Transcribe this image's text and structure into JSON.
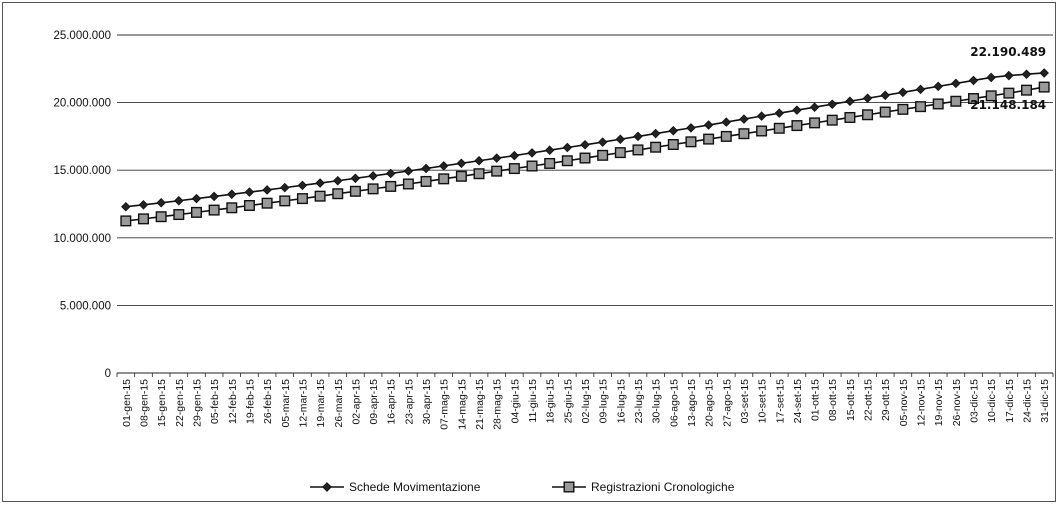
{
  "chart_data": {
    "type": "line",
    "ylim": [
      0,
      25000000
    ],
    "yticks": [
      "0",
      "5.000.000",
      "10.000.000",
      "15.000.000",
      "20.000.000",
      "25.000.000"
    ],
    "ytick_values": [
      0,
      5000000,
      10000000,
      15000000,
      20000000,
      25000000
    ],
    "grid": true,
    "legend_position": "bottom",
    "x": [
      "01-gen-15",
      "08-gen-15",
      "15-gen-15",
      "22-gen-15",
      "29-gen-15",
      "05-feb-15",
      "12-feb-15",
      "19-feb-15",
      "26-feb-15",
      "05-mar-15",
      "12-mar-15",
      "19-mar-15",
      "26-mar-15",
      "02-apr-15",
      "09-apr-15",
      "16-apr-15",
      "23-apr-15",
      "30-apr-15",
      "07-mag-15",
      "14-mag-15",
      "21-mag-15",
      "28-mag-15",
      "04-giu-15",
      "11-giu-15",
      "18-giu-15",
      "25-giu-15",
      "02-lug-15",
      "09-lug-15",
      "16-lug-15",
      "23-lug-15",
      "30-lug-15",
      "06-ago-15",
      "13-ago-15",
      "20-ago-15",
      "27-ago-15",
      "03-set-15",
      "10-set-15",
      "17-set-15",
      "24-set-15",
      "01-ott-15",
      "08-ott-15",
      "15-ott-15",
      "22-ott-15",
      "29-ott-15",
      "05-nov-15",
      "12-nov-15",
      "19-nov-15",
      "26-nov-15",
      "03-dic-15",
      "10-dic-15",
      "17-dic-15",
      "24-dic-15",
      "31-dic-15"
    ],
    "series": [
      {
        "name": "Schede Movimentazione",
        "marker": "diamond",
        "color": "#111111",
        "values": [
          12300000,
          12440000,
          12590000,
          12740000,
          12900000,
          13060000,
          13220000,
          13380000,
          13540000,
          13710000,
          13880000,
          14050000,
          14220000,
          14400000,
          14580000,
          14760000,
          14940000,
          15130000,
          15320000,
          15510000,
          15700000,
          15890000,
          16080000,
          16280000,
          16480000,
          16680000,
          16880000,
          17080000,
          17290000,
          17500000,
          17710000,
          17920000,
          18130000,
          18340000,
          18560000,
          18780000,
          19000000,
          19220000,
          19440000,
          19660000,
          19880000,
          20100000,
          20320000,
          20540000,
          20760000,
          20980000,
          21200000,
          21420000,
          21640000,
          21860000,
          22000000,
          22100000,
          22190489
        ]
      },
      {
        "name": "Registrazioni Cronologiche",
        "marker": "square",
        "color": "#111111",
        "values": [
          11250000,
          11400000,
          11560000,
          11720000,
          11880000,
          12050000,
          12220000,
          12390000,
          12560000,
          12730000,
          12900000,
          13080000,
          13260000,
          13440000,
          13620000,
          13800000,
          13980000,
          14170000,
          14360000,
          14550000,
          14740000,
          14930000,
          15120000,
          15310000,
          15500000,
          15700000,
          15900000,
          16100000,
          16300000,
          16500000,
          16700000,
          16900000,
          17100000,
          17300000,
          17500000,
          17700000,
          17900000,
          18100000,
          18300000,
          18500000,
          18700000,
          18900000,
          19100000,
          19300000,
          19500000,
          19700000,
          19900000,
          20100000,
          20300000,
          20500000,
          20700000,
          20920000,
          21148184
        ]
      }
    ],
    "data_labels": [
      {
        "series": 0,
        "index": 52,
        "text": "22.190.489"
      },
      {
        "series": 1,
        "index": 52,
        "text": "21.148.184"
      }
    ]
  }
}
